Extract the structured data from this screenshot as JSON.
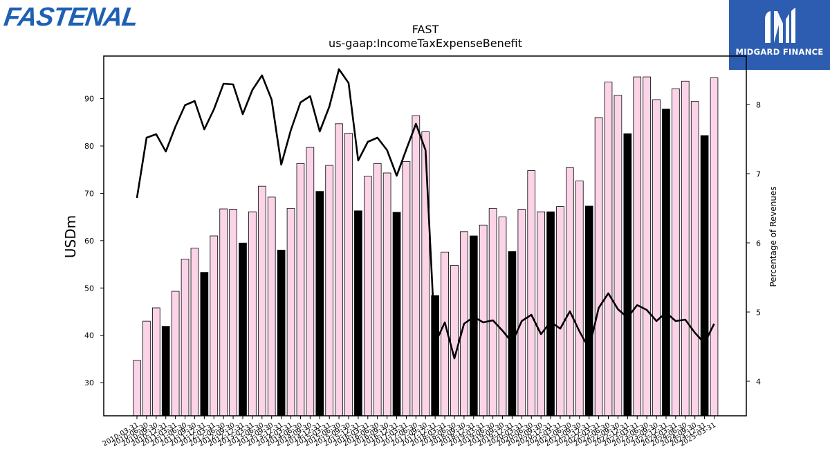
{
  "logo_left": {
    "text": "FASTENAL"
  },
  "logo_right": {
    "text": "MIDGARD FINANCE",
    "bg_color": "#2d5db0"
  },
  "chart_data": {
    "type": "bar",
    "title": "FAST",
    "subtitle": "us-gaap:IncomeTaxExpenseBenefit",
    "ylabel": "USDm",
    "y2label": "Percentage of Revenues",
    "ylim": [
      23,
      99
    ],
    "y2lim": [
      3.5,
      8.7
    ],
    "yticks": [
      30,
      40,
      50,
      60,
      70,
      80,
      90
    ],
    "y2ticks": [
      4,
      5,
      6,
      7,
      8
    ],
    "colors": {
      "quarter_bar": "#fcd4e8",
      "annual_bar": "#000000",
      "line": "#000000"
    },
    "categories": [
      "2010-03-31",
      "2010-06-30",
      "2010-09-30",
      "2010-12-31",
      "2011-03-31",
      "2011-06-30",
      "2011-09-30",
      "2011-12-31",
      "2012-03-31",
      "2012-06-30",
      "2012-09-30",
      "2012-12-31",
      "2013-03-31",
      "2013-06-30",
      "2013-09-30",
      "2013-12-31",
      "2014-03-31",
      "2014-06-30",
      "2014-09-30",
      "2014-12-31",
      "2015-03-31",
      "2015-06-30",
      "2015-09-30",
      "2015-12-31",
      "2016-03-31",
      "2016-06-30",
      "2016-09-30",
      "2016-12-31",
      "2017-03-31",
      "2017-06-30",
      "2017-09-30",
      "2017-12-31",
      "2018-03-31",
      "2018-06-30",
      "2018-09-30",
      "2018-12-31",
      "2019-03-31",
      "2019-06-30",
      "2019-09-30",
      "2019-12-31",
      "2020-03-31",
      "2020-06-30",
      "2020-09-30",
      "2020-12-31",
      "2021-03-31",
      "2021-06-30",
      "2021-09-30",
      "2021-12-31",
      "2022-03-31",
      "2022-06-30",
      "2022-09-30",
      "2022-12-31",
      "2023-03-31",
      "2023-06-30",
      "2023-09-30",
      "2023-12-31",
      "2024-03-31",
      "2024-06-30",
      "2024-09-30",
      "2024-12-31",
      "2025-03-31"
    ],
    "series": [
      {
        "values": [
          34.7,
          43.0,
          45.8,
          41.9,
          49.3,
          56.1,
          58.4,
          53.3,
          61.0,
          66.7,
          66.6,
          59.5,
          66.1,
          71.5,
          69.2,
          58.0,
          66.8,
          76.3,
          79.7,
          70.4,
          75.9,
          84.7,
          82.7,
          66.3,
          73.6,
          76.3,
          74.3,
          66.0,
          76.7,
          86.4,
          83.0,
          48.4,
          57.6,
          54.8,
          61.9,
          61.0,
          63.3,
          66.8,
          65.0,
          57.7,
          66.6,
          74.8,
          66.1,
          66.1,
          67.2,
          75.4,
          72.6,
          67.3,
          86.0,
          93.5,
          90.7,
          82.6,
          94.6,
          94.6,
          89.8,
          87.8,
          92.1,
          93.7,
          89.4,
          82.2,
          94.4
        ],
        "bar_kind": [
          "q",
          "q",
          "q",
          "a",
          "q",
          "q",
          "q",
          "a",
          "q",
          "q",
          "q",
          "a",
          "q",
          "q",
          "q",
          "a",
          "q",
          "q",
          "q",
          "a",
          "q",
          "q",
          "q",
          "a",
          "q",
          "q",
          "q",
          "a",
          "q",
          "q",
          "q",
          "a",
          "q",
          "q",
          "q",
          "a",
          "q",
          "q",
          "q",
          "a",
          "q",
          "q",
          "q",
          "a",
          "q",
          "q",
          "q",
          "a",
          "q",
          "q",
          "q",
          "a",
          "q",
          "q",
          "q",
          "a",
          "q",
          "q",
          "q",
          "a",
          "q"
        ]
      },
      {
        "axis": "right",
        "values": [
          6.65,
          7.52,
          7.57,
          7.32,
          7.68,
          7.99,
          8.05,
          7.64,
          7.93,
          8.3,
          8.29,
          7.86,
          8.21,
          8.42,
          8.07,
          7.13,
          7.63,
          8.03,
          8.12,
          7.61,
          7.97,
          8.51,
          8.31,
          7.19,
          7.46,
          7.52,
          7.34,
          6.97,
          7.35,
          7.72,
          7.34,
          4.55,
          4.85,
          4.33,
          4.83,
          4.93,
          4.85,
          4.88,
          4.73,
          4.56,
          4.87,
          4.96,
          4.68,
          4.86,
          4.76,
          5.01,
          4.72,
          4.47,
          5.06,
          5.27,
          5.04,
          4.92,
          5.1,
          5.03,
          4.87,
          4.99,
          4.87,
          4.89,
          4.7,
          4.55,
          4.83
        ]
      }
    ]
  }
}
